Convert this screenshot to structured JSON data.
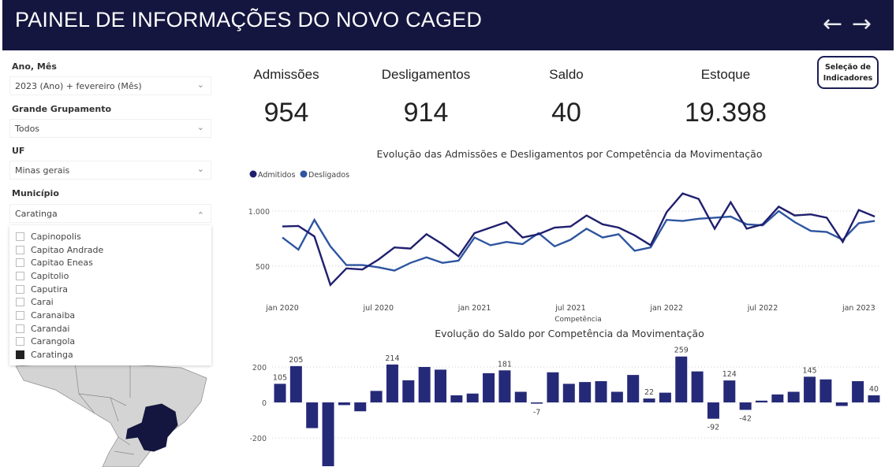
{
  "header": {
    "title": "PAINEL DE INFORMAÇÕES DO NOVO CAGED",
    "back_icon": "arrow-left-icon",
    "forward_icon": "arrow-right-icon",
    "color": "#14163f"
  },
  "filters": {
    "ano_mes": {
      "label": "Ano, Mês",
      "value": "2023 (Ano) + fevereiro (Mês)"
    },
    "grupamento": {
      "label": "Grande Grupamento",
      "value": "Todos"
    },
    "uf": {
      "label": "UF",
      "value": "Minas gerais"
    },
    "municipio": {
      "label": "Município",
      "value": "Caratinga",
      "options": [
        {
          "label": "Capinopolis",
          "checked": false
        },
        {
          "label": "Capitao Andrade",
          "checked": false
        },
        {
          "label": "Capitao Eneas",
          "checked": false
        },
        {
          "label": "Capitolio",
          "checked": false
        },
        {
          "label": "Caputira",
          "checked": false
        },
        {
          "label": "Carai",
          "checked": false
        },
        {
          "label": "Caranaiba",
          "checked": false
        },
        {
          "label": "Carandai",
          "checked": false
        },
        {
          "label": "Carangola",
          "checked": false
        },
        {
          "label": "Caratinga",
          "checked": true
        }
      ]
    }
  },
  "kpis": [
    {
      "label": "Admissões",
      "value": "954"
    },
    {
      "label": "Desligamentos",
      "value": "914"
    },
    {
      "label": "Saldo",
      "value": "40"
    },
    {
      "label": "Estoque",
      "value": "19.398"
    }
  ],
  "selection_button": {
    "line1": "Seleção de",
    "line2": "Indicadores"
  },
  "map": {
    "highlight_color": "#14163f",
    "base_color": "#d4d4d4"
  },
  "chart_data": [
    {
      "type": "line",
      "title": "Evolução das Admissões e Desligamentos por Competência da Movimentação",
      "xlabel": "Competência",
      "ylabel": "",
      "x_start": "jan 2020",
      "x_end": "fev 2023",
      "x_ticks": [
        "jan 2020",
        "jul 2020",
        "jan 2021",
        "jul 2021",
        "jan 2022",
        "jul 2022",
        "jan 2023"
      ],
      "y_ticks": [
        {
          "v": 500,
          "label": "500"
        },
        {
          "v": 1000,
          "label": "1.000"
        }
      ],
      "grid": true,
      "legend": "top-left",
      "series": [
        {
          "name": "Admitidos",
          "color": "#1f1f6e",
          "values": [
            860,
            865,
            770,
            330,
            480,
            470,
            560,
            670,
            660,
            790,
            700,
            590,
            800,
            850,
            900,
            760,
            790,
            850,
            860,
            960,
            880,
            850,
            780,
            690,
            990,
            1160,
            1110,
            840,
            1080,
            840,
            880,
            1040,
            960,
            970,
            940,
            720,
            1010,
            950
          ]
        },
        {
          "name": "Desligados",
          "color": "#2e55a0",
          "values": [
            760,
            650,
            920,
            680,
            510,
            510,
            490,
            460,
            530,
            580,
            530,
            550,
            760,
            690,
            720,
            700,
            800,
            680,
            740,
            840,
            760,
            790,
            640,
            670,
            920,
            910,
            930,
            940,
            950,
            880,
            870,
            1000,
            900,
            820,
            810,
            740,
            890,
            910
          ]
        }
      ]
    },
    {
      "type": "bar",
      "title": "Evolução do Saldo por Competência da Movimentação",
      "color": "#252a78",
      "y_ticks": [
        {
          "v": -200,
          "label": "-200"
        },
        {
          "v": 0,
          "label": "0"
        },
        {
          "v": 200,
          "label": "200"
        }
      ],
      "grid": true,
      "values": [
        105,
        205,
        -145,
        -360,
        -15,
        -50,
        65,
        214,
        125,
        200,
        185,
        40,
        50,
        165,
        181,
        60,
        -7,
        170,
        105,
        115,
        120,
        60,
        155,
        22,
        55,
        259,
        175,
        -92,
        124,
        -42,
        10,
        45,
        60,
        145,
        130,
        -20,
        120,
        40
      ],
      "data_labels": {
        "0": "105",
        "1": "205",
        "7": "214",
        "14": "181",
        "16": "-7",
        "23": "22",
        "25": "259",
        "27": "-92",
        "28": "124",
        "29": "-42",
        "33": "145",
        "37": "40"
      }
    }
  ]
}
